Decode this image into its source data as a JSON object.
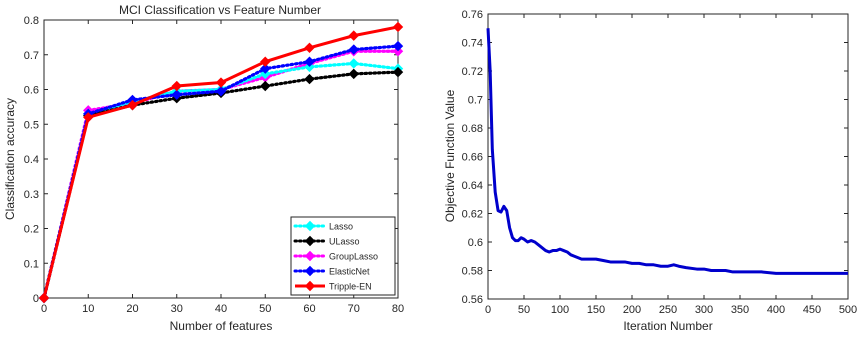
{
  "chart_data": [
    {
      "type": "line",
      "title": "MCI Classification vs Feature Number",
      "xlabel": "Number of features",
      "ylabel": "Classification accuracy",
      "xlim": [
        0,
        80
      ],
      "ylim": [
        0,
        0.8
      ],
      "xticks": [
        0,
        10,
        20,
        30,
        40,
        50,
        60,
        70,
        80
      ],
      "yticks": [
        0,
        0.1,
        0.2,
        0.3,
        0.4,
        0.5,
        0.6,
        0.7,
        0.8
      ],
      "grid": false,
      "legend_position": "bottom-right",
      "x": [
        0,
        10,
        20,
        30,
        40,
        50,
        60,
        70,
        80
      ],
      "series": [
        {
          "name": "Lasso",
          "color": "#00ffff",
          "style": "dotted",
          "marker": "diamond",
          "values": [
            0,
            0.53,
            0.565,
            0.595,
            0.6,
            0.645,
            0.665,
            0.675,
            0.66
          ]
        },
        {
          "name": "ULasso",
          "color": "#000000",
          "style": "dotted",
          "marker": "diamond",
          "values": [
            0,
            0.525,
            0.555,
            0.575,
            0.59,
            0.61,
            0.63,
            0.645,
            0.65
          ]
        },
        {
          "name": "GroupLasso",
          "color": "#ff00ff",
          "style": "dotted",
          "marker": "diamond",
          "values": [
            0,
            0.54,
            0.56,
            0.595,
            0.6,
            0.635,
            0.675,
            0.71,
            0.71
          ]
        },
        {
          "name": "ElasticNet",
          "color": "#0000ff",
          "style": "dotted",
          "marker": "diamond",
          "values": [
            0,
            0.53,
            0.57,
            0.585,
            0.595,
            0.66,
            0.68,
            0.715,
            0.725
          ]
        },
        {
          "name": "Tripple-EN",
          "color": "#ff0000",
          "style": "solid",
          "marker": "diamond",
          "values": [
            0,
            0.52,
            0.555,
            0.61,
            0.62,
            0.68,
            0.72,
            0.755,
            0.78
          ]
        }
      ]
    },
    {
      "type": "line",
      "title": "",
      "xlabel": "Iteration Number",
      "ylabel": "Objective Function Value",
      "xlim": [
        0,
        500
      ],
      "ylim": [
        0.56,
        0.76
      ],
      "xticks": [
        0,
        50,
        100,
        150,
        200,
        250,
        300,
        350,
        400,
        450,
        500
      ],
      "yticks": [
        0.56,
        0.58,
        0.6,
        0.62,
        0.64,
        0.66,
        0.68,
        0.7,
        0.72,
        0.74,
        0.76
      ],
      "yticklabels": [
        "0.56",
        "0.58",
        "0.6",
        "0.62",
        "0.64",
        "0.66",
        "0.68",
        "0.7",
        "0.72",
        "0.74",
        "0.76"
      ],
      "grid": false,
      "series": [
        {
          "name": "",
          "color": "#0000cc",
          "x": [
            0,
            3,
            6,
            10,
            14,
            18,
            22,
            26,
            30,
            34,
            38,
            42,
            46,
            50,
            55,
            60,
            65,
            70,
            75,
            80,
            85,
            90,
            95,
            100,
            105,
            110,
            115,
            120,
            130,
            140,
            150,
            160,
            170,
            180,
            190,
            200,
            210,
            220,
            230,
            240,
            250,
            258,
            265,
            275,
            290,
            300,
            310,
            320,
            330,
            340,
            350,
            360,
            370,
            380,
            400,
            420,
            440,
            460,
            480,
            500
          ],
          "y": [
            0.75,
            0.72,
            0.665,
            0.635,
            0.622,
            0.621,
            0.625,
            0.622,
            0.61,
            0.603,
            0.601,
            0.601,
            0.603,
            0.602,
            0.6,
            0.601,
            0.6,
            0.598,
            0.596,
            0.594,
            0.593,
            0.594,
            0.594,
            0.595,
            0.594,
            0.593,
            0.591,
            0.59,
            0.588,
            0.588,
            0.588,
            0.587,
            0.586,
            0.586,
            0.586,
            0.585,
            0.585,
            0.584,
            0.584,
            0.583,
            0.583,
            0.584,
            0.583,
            0.582,
            0.581,
            0.581,
            0.58,
            0.58,
            0.58,
            0.579,
            0.579,
            0.579,
            0.579,
            0.579,
            0.578,
            0.578,
            0.578,
            0.578,
            0.578,
            0.578
          ]
        }
      ]
    }
  ]
}
